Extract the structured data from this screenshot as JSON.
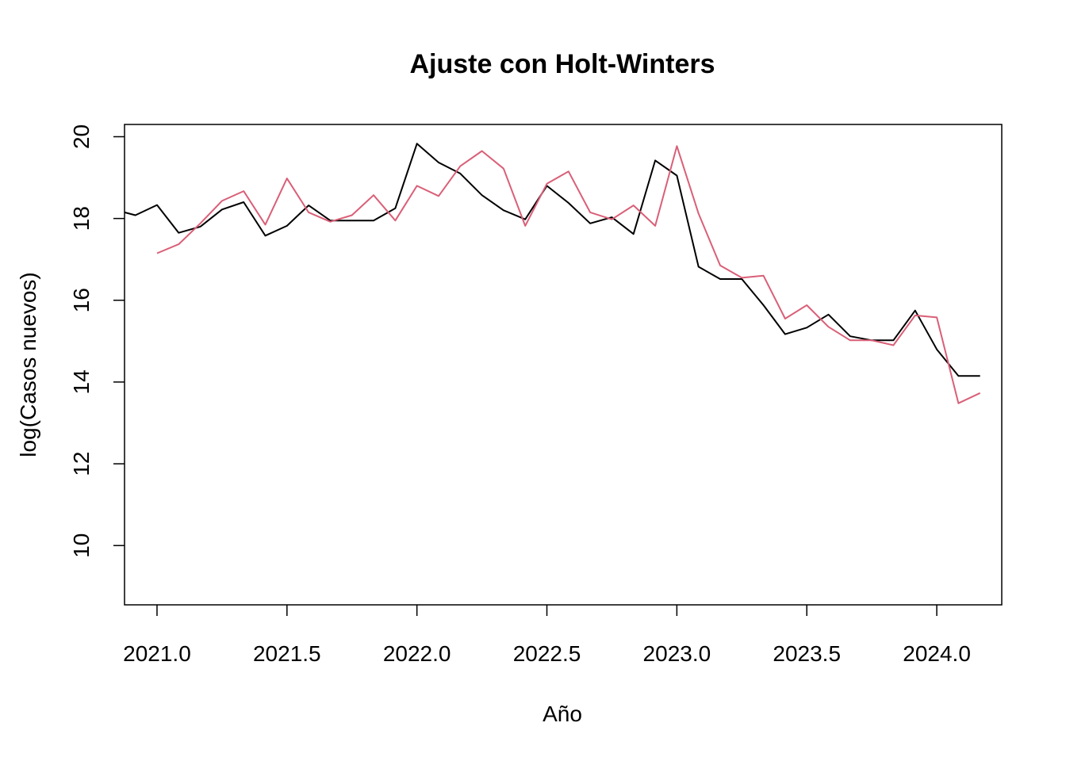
{
  "chart_data": {
    "type": "line",
    "title": "Ajuste con Holt-Winters",
    "xlabel": "Año",
    "ylabel": "log(Casos nuevos)",
    "xlim": [
      2020.875,
      2024.25
    ],
    "ylim": [
      8.55,
      20.3
    ],
    "grid": false,
    "x_ticks": [
      2021.0,
      2021.5,
      2022.0,
      2022.5,
      2023.0,
      2023.5,
      2024.0
    ],
    "x_tick_labels": [
      "2021.0",
      "2021.5",
      "2022.0",
      "2022.5",
      "2023.0",
      "2023.5",
      "2024.0"
    ],
    "y_ticks": [
      10,
      12,
      14,
      16,
      18,
      20
    ],
    "y_tick_labels": [
      "10",
      "12",
      "14",
      "16",
      "18",
      "20"
    ],
    "series": [
      {
        "color": "#000000",
        "x": [
          2020.875,
          2020.9167,
          2021.0,
          2021.0833,
          2021.1667,
          2021.25,
          2021.3333,
          2021.4167,
          2021.5,
          2021.5833,
          2021.6667,
          2021.75,
          2021.8333,
          2021.9167,
          2022.0,
          2022.0833,
          2022.1667,
          2022.25,
          2022.3333,
          2022.4167,
          2022.5,
          2022.5833,
          2022.6667,
          2022.75,
          2022.8333,
          2022.9167,
          2023.0,
          2023.0833,
          2023.1667,
          2023.25,
          2023.3333,
          2023.4167,
          2023.5,
          2023.5833,
          2023.6667,
          2023.75,
          2023.8333,
          2023.9167,
          2024.0,
          2024.0833,
          2024.1667
        ],
        "values": [
          18.15,
          18.08,
          18.33,
          17.65,
          17.8,
          18.22,
          18.4,
          17.58,
          17.82,
          18.32,
          17.95,
          17.95,
          17.95,
          18.25,
          19.83,
          19.37,
          19.1,
          18.57,
          18.2,
          17.98,
          18.8,
          18.38,
          17.88,
          18.03,
          17.62,
          19.42,
          19.05,
          16.82,
          16.52,
          16.52,
          15.88,
          15.17,
          15.33,
          15.65,
          15.12,
          15.02,
          15.02,
          15.75,
          14.8,
          14.15,
          14.15
        ]
      },
      {
        "color": "#d95f77",
        "x": [
          2021.0,
          2021.0833,
          2021.1667,
          2021.25,
          2021.3333,
          2021.4167,
          2021.5,
          2021.5833,
          2021.6667,
          2021.75,
          2021.8333,
          2021.9167,
          2022.0,
          2022.0833,
          2022.1667,
          2022.25,
          2022.3333,
          2022.4167,
          2022.5,
          2022.5833,
          2022.6667,
          2022.75,
          2022.8333,
          2022.9167,
          2023.0,
          2023.0833,
          2023.1667,
          2023.25,
          2023.3333,
          2023.4167,
          2023.5,
          2023.5833,
          2023.6667,
          2023.75,
          2023.8333,
          2023.9167,
          2024.0,
          2024.0833,
          2024.1667
        ],
        "values": [
          17.15,
          17.37,
          17.88,
          18.43,
          18.67,
          17.85,
          18.98,
          18.15,
          17.92,
          18.08,
          18.57,
          17.95,
          18.8,
          18.55,
          19.28,
          19.65,
          19.22,
          17.82,
          18.85,
          19.15,
          18.15,
          17.98,
          18.32,
          17.82,
          19.77,
          18.12,
          16.85,
          16.55,
          16.6,
          15.55,
          15.88,
          15.35,
          15.02,
          15.02,
          14.9,
          15.63,
          15.58,
          13.48,
          13.73
        ]
      }
    ]
  }
}
